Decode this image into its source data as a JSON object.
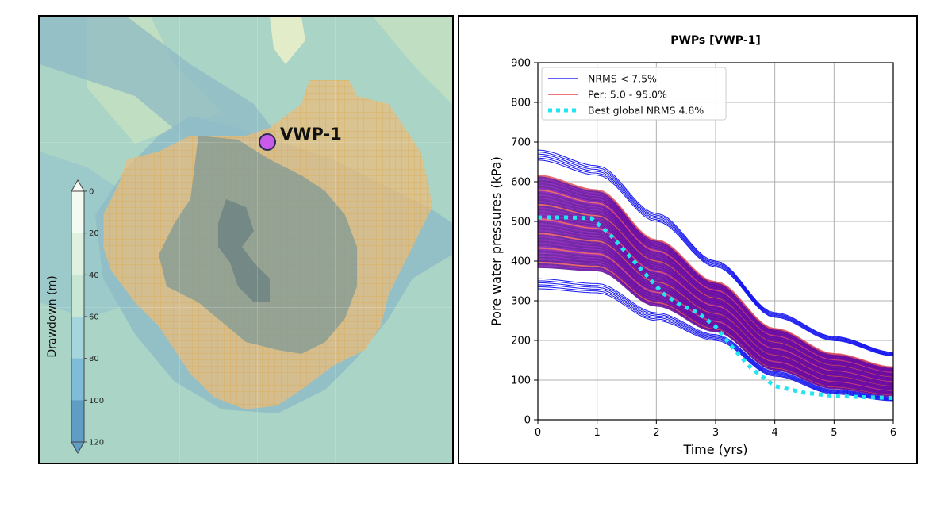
{
  "map": {
    "well_label": "VWP-1",
    "colorbar": {
      "label": "Drawdown (m)",
      "ticks": [
        "0",
        "20",
        "40",
        "60",
        "80",
        "100",
        "120"
      ],
      "bands": [
        "#f3faf1",
        "#e1f1df",
        "#c7e6d4",
        "#a6d6dd",
        "#7fbcd8",
        "#5f9dc4"
      ]
    },
    "colors": {
      "background": "#a9d4c6",
      "grid_overlay": "#e6a849",
      "marker": "#c85ce8"
    }
  },
  "chart_data": {
    "type": "line",
    "title": "PWPs [VWP-1]",
    "xlabel": "Time (yrs)",
    "ylabel": "Pore water pressures  (kPa)",
    "xlim": [
      0,
      6
    ],
    "ylim": [
      0,
      900
    ],
    "xticks": [
      "0",
      "1",
      "2",
      "3",
      "4",
      "5",
      "6"
    ],
    "yticks": [
      "0",
      "100",
      "200",
      "300",
      "400",
      "500",
      "600",
      "700",
      "800",
      "900"
    ],
    "grid": true,
    "legend_position": "top-left",
    "legend": [
      {
        "name": "NRMS < 7.5%",
        "color": "#0000ff",
        "style": "solid"
      },
      {
        "name": "Per: 5.0 - 95.0%",
        "color": "#e0202a",
        "style": "solid"
      },
      {
        "name": "Best global NRMS 4.8%",
        "color": "#22e5f0",
        "style": "dotted"
      }
    ],
    "ensemble": {
      "x": [
        0,
        1,
        2,
        3,
        4,
        5,
        6
      ],
      "upper_envelope": [
        680,
        640,
        520,
        400,
        270,
        210,
        170
      ],
      "lower_envelope": [
        330,
        320,
        250,
        200,
        110,
        65,
        48
      ],
      "upper_percentile": [
        640,
        600,
        470,
        360,
        240,
        175,
        140
      ],
      "lower_percentile": [
        360,
        355,
        270,
        210,
        115,
        70,
        52
      ],
      "fill_color": "#6a0a9a"
    },
    "series": [
      {
        "name": "Best global NRMS 4.8%",
        "x": [
          0,
          0.5,
          0.9,
          1.2,
          1.5,
          1.8,
          2.1,
          2.4,
          2.7,
          3.0,
          3.3,
          3.6,
          4.0,
          4.5,
          5.0,
          5.5,
          6.0
        ],
        "values": [
          510,
          510,
          508,
          470,
          420,
          370,
          320,
          290,
          270,
          235,
          180,
          130,
          85,
          68,
          60,
          57,
          55
        ]
      }
    ]
  }
}
